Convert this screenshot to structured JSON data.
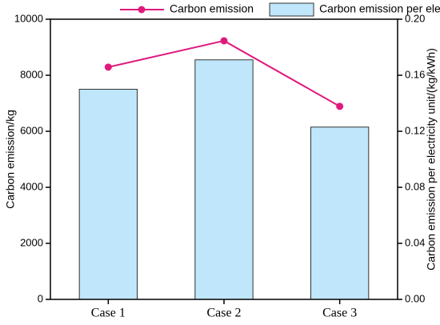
{
  "chart_data": {
    "type": "bar-line",
    "categories": [
      "Case 1",
      "Case 2",
      "Case 3"
    ],
    "series": [
      {
        "name": "Carbon emission",
        "type": "line",
        "color": "#e0197d",
        "axis": "y",
        "values": [
          8290,
          9230,
          6890
        ]
      },
      {
        "name": "Carbon emission per electricity unit",
        "type": "bar",
        "color": "#bfe6fb",
        "axis": "y2",
        "values": [
          0.15,
          0.171,
          0.123
        ]
      }
    ],
    "ylabel": "Carbon emission/kg",
    "y2label": "Carbon emission per electricity unit/(kg/kWh)",
    "ylim": [
      0,
      10000
    ],
    "yticks": [
      0,
      2000,
      4000,
      6000,
      8000,
      10000
    ],
    "y2lim": [
      0,
      0.2
    ],
    "y2ticks": [
      {
        "value": 0,
        "label": "0.00"
      },
      {
        "value": 0.04,
        "label": "0.04"
      },
      {
        "value": 0.08,
        "label": "0.08"
      },
      {
        "value": 0.12,
        "label": "0.12"
      },
      {
        "value": 0.16,
        "label": "0.16"
      },
      {
        "value": 0.2,
        "label": "0.20"
      }
    ]
  }
}
